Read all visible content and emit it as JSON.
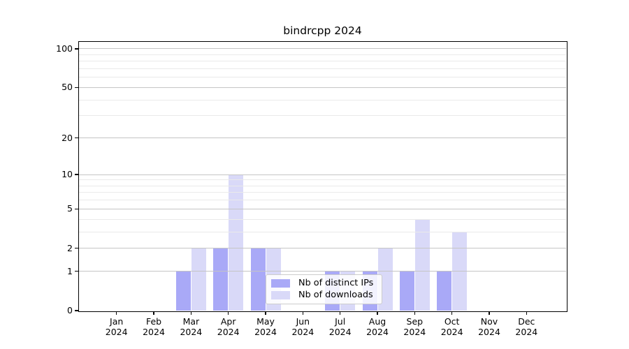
{
  "figure": {
    "background": "#ffffff",
    "axis_color": "#000000",
    "grid_major_color": "#c5c5c5",
    "grid_minor_color": "#eaeaea",
    "tick_label_color": "#000000"
  },
  "chart_data": {
    "type": "bar",
    "title": "bindrcpp 2024",
    "categories": [
      "Jan 2024",
      "Feb 2024",
      "Mar 2024",
      "Apr 2024",
      "May 2024",
      "Jun 2024",
      "Jul 2024",
      "Aug 2024",
      "Sep 2024",
      "Oct 2024",
      "Nov 2024",
      "Dec 2024"
    ],
    "series": [
      {
        "name": "Nb of distinct IPs",
        "color": "#a9a9f7",
        "values": [
          0,
          0,
          1,
          2,
          2,
          0,
          1,
          1,
          1,
          1,
          0,
          0
        ]
      },
      {
        "name": "Nb of downloads",
        "color": "#d9d9f8",
        "values": [
          0,
          0,
          2,
          10,
          2,
          0,
          1,
          2,
          4,
          3,
          0,
          0
        ]
      }
    ],
    "xlabel": "",
    "ylabel": "",
    "yscale": "log1p",
    "ylim": [
      0,
      113
    ],
    "yticks": [
      0,
      1,
      2,
      5,
      10,
      20,
      50,
      100
    ],
    "yticks_minor": [
      3,
      4,
      6,
      7,
      8,
      9,
      30,
      40,
      60,
      70,
      80,
      90
    ],
    "grid": true,
    "grid_above_bars": true,
    "legend_position": "lower center"
  }
}
